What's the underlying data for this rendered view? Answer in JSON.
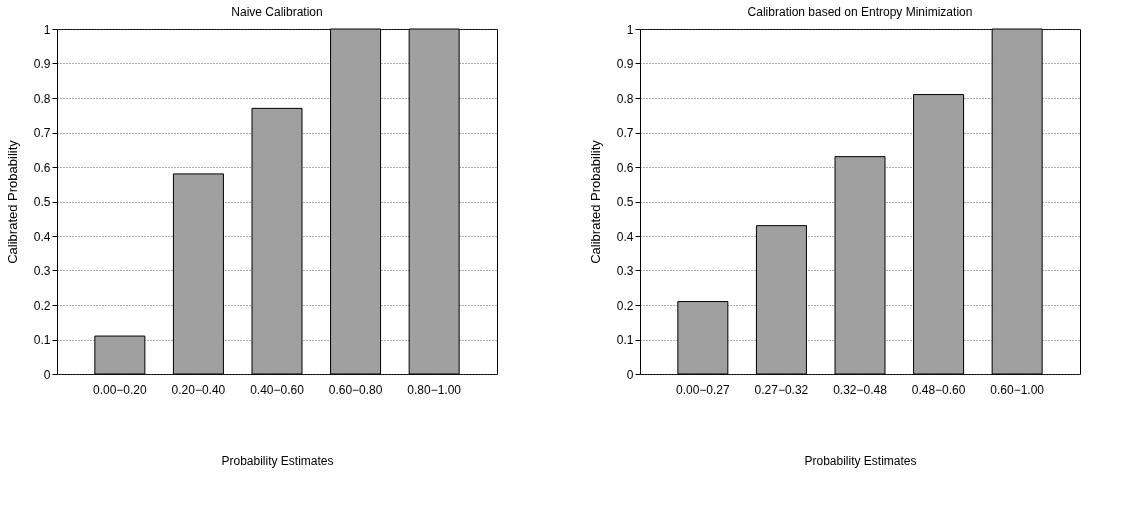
{
  "chart_data": [
    {
      "type": "bar",
      "title": "Naive Calibration",
      "xlabel": "Probability Estimates",
      "ylabel": "Calibrated Probability",
      "categories": [
        "0.00−0.20",
        "0.20−0.40",
        "0.40−0.60",
        "0.60−0.80",
        "0.80−1.00"
      ],
      "values": [
        0.11,
        0.58,
        0.77,
        1,
        1
      ],
      "color": "#a0a0a0",
      "ylim": [
        0,
        1
      ],
      "yticks": [
        0,
        0.1,
        0.2,
        0.3,
        0.4,
        0.5,
        0.6,
        0.7,
        0.8,
        0.9,
        1
      ],
      "grid": "y"
    },
    {
      "type": "bar",
      "title": "Calibration based on Entropy Minimization",
      "xlabel": "Probability Estimates",
      "ylabel": "Calibrated Probability",
      "categories": [
        "0.00−0.27",
        "0.27−0.32",
        "0.32−0.48",
        "0.48−0.60",
        "0.60−1.00"
      ],
      "values": [
        0.21,
        0.43,
        0.63,
        0.81,
        1
      ],
      "color": "#a0a0a0",
      "ylim": [
        0,
        1
      ],
      "yticks": [
        0,
        0.1,
        0.2,
        0.3,
        0.4,
        0.5,
        0.6,
        0.7,
        0.8,
        0.9,
        1
      ],
      "grid": "y"
    }
  ]
}
